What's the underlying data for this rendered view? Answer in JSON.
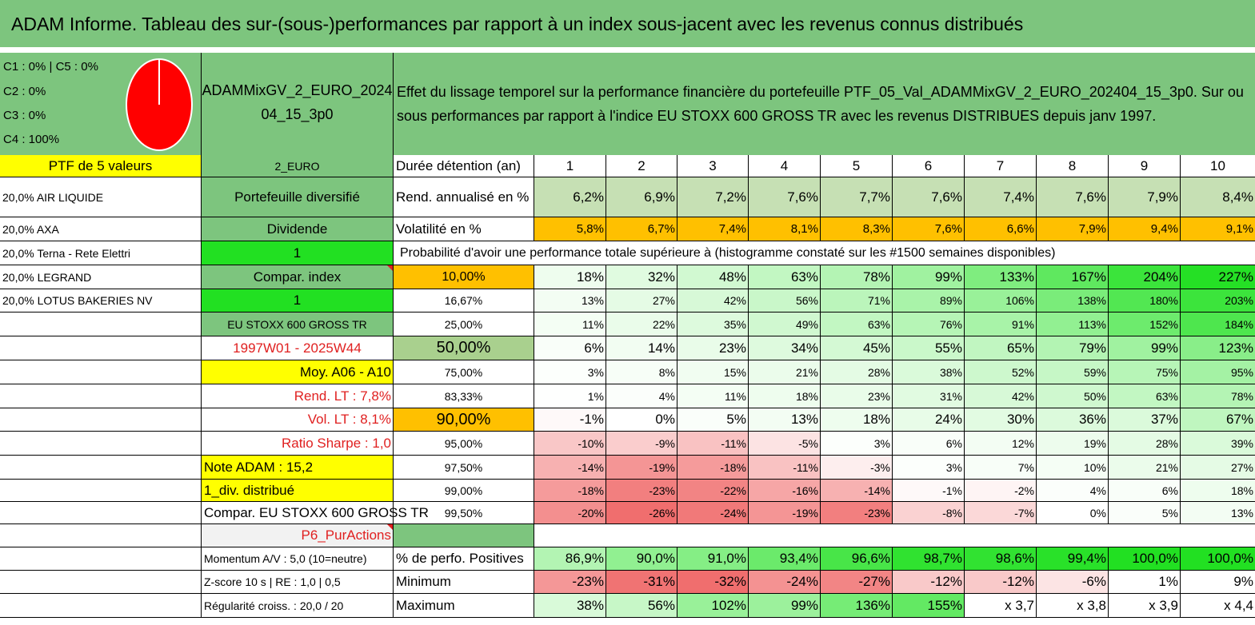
{
  "title": "ADAM Informe. Tableau des sur-(sous-)performances par rapport à un index sous-jacent avec les revenus connus distribués",
  "pie": {
    "lines": [
      "C1 : 0% | C5 : 0%",
      "C2 : 0%",
      "C3 : 0%",
      "C4 : 100%"
    ],
    "fill_color": "#ff0000",
    "stroke_color": "#ffffff"
  },
  "portfolio_name": "ADAMMixGV_2_EURO_202404_15_3p0",
  "effect_text": "Effet du lissage temporel sur la performance financière du portefeuille PTF_05_Val_ADAMMixGV_2_EURO_202404_15_3p0. Sur ou sous performances par rapport à l'indice EU STOXX 600 GROSS TR avec les revenus DISTRIBUES depuis janv 1997.",
  "colors": {
    "green": "#7dc57e",
    "yellow": "#ffff00",
    "bright_green": "#22e022",
    "orange": "#ffc000",
    "light_grey": "#f2f2f2",
    "red_text": "#e02020"
  },
  "col1": [
    "PTF de 5 valeurs",
    "20,0% AIR LIQUIDE",
    "20,0% AXA",
    "20,0% Terna - Rete Elettri",
    "20,0% LEGRAND",
    "20,0% LOTUS BAKERIES NV",
    "",
    "",
    "",
    "",
    "",
    "",
    "",
    "",
    "",
    "",
    "",
    ""
  ],
  "col2": [
    "2_EURO",
    "Portefeuille diversifié",
    "Dividende",
    "1",
    "Compar. index",
    "1",
    "EU STOXX 600 GROSS TR",
    "1997W01 - 2025W44",
    "Moy. A06 - A10",
    "Rend. LT : 7,8%",
    "Vol. LT : 8,1%",
    "Ratio Sharpe : 1,0",
    "Note ADAM : 15,2",
    "1_div. distribué",
    "Compar. EU STOXX 600 GROSS TR",
    "P6_PurActions",
    "Momentum A/V : 5,0 (10=neutre)",
    "Z-score 10 s | RE : 1,0 | 0,5",
    "Régularité croiss. : 20,0 / 20"
  ],
  "col3": [
    "Durée détention (an)",
    "Rend. annualisé en %",
    "Volatilité en %",
    "",
    "10,00%",
    "16,67%",
    "25,00%",
    "50,00%",
    "75,00%",
    "83,33%",
    "90,00%",
    "95,00%",
    "97,50%",
    "99,00%",
    "99,50%",
    "",
    "% de perfo. Positives",
    "Minimum",
    "Maximum"
  ],
  "proba_title": "Probabilité d'avoir une performance totale supérieure à (histogramme constaté sur les #1500 semaines disponibles)",
  "grid": [
    [
      "1",
      "2",
      "3",
      "4",
      "5",
      "6",
      "7",
      "8",
      "9",
      "10"
    ],
    [
      "6,2%",
      "6,9%",
      "7,2%",
      "7,6%",
      "7,7%",
      "7,6%",
      "7,4%",
      "7,6%",
      "7,9%",
      "8,4%"
    ],
    [
      "5,8%",
      "6,7%",
      "7,4%",
      "8,1%",
      "8,3%",
      "7,6%",
      "6,6%",
      "7,9%",
      "9,4%",
      "9,1%"
    ],
    [],
    [
      "18%",
      "32%",
      "48%",
      "63%",
      "78%",
      "99%",
      "133%",
      "167%",
      "204%",
      "227%"
    ],
    [
      "13%",
      "27%",
      "42%",
      "56%",
      "71%",
      "89%",
      "106%",
      "138%",
      "180%",
      "203%"
    ],
    [
      "11%",
      "22%",
      "35%",
      "49%",
      "63%",
      "76%",
      "91%",
      "113%",
      "152%",
      "184%"
    ],
    [
      "6%",
      "14%",
      "23%",
      "34%",
      "45%",
      "55%",
      "65%",
      "79%",
      "99%",
      "123%"
    ],
    [
      "3%",
      "8%",
      "15%",
      "21%",
      "28%",
      "38%",
      "52%",
      "59%",
      "75%",
      "95%"
    ],
    [
      "1%",
      "4%",
      "11%",
      "18%",
      "23%",
      "31%",
      "42%",
      "50%",
      "63%",
      "78%"
    ],
    [
      "-1%",
      "0%",
      "5%",
      "13%",
      "18%",
      "24%",
      "30%",
      "36%",
      "37%",
      "67%"
    ],
    [
      "-10%",
      "-9%",
      "-11%",
      "-5%",
      "3%",
      "6%",
      "12%",
      "19%",
      "28%",
      "39%"
    ],
    [
      "-14%",
      "-19%",
      "-18%",
      "-11%",
      "-3%",
      "3%",
      "7%",
      "10%",
      "21%",
      "27%"
    ],
    [
      "-18%",
      "-23%",
      "-22%",
      "-16%",
      "-14%",
      "-1%",
      "-2%",
      "4%",
      "6%",
      "18%"
    ],
    [
      "-20%",
      "-26%",
      "-24%",
      "-19%",
      "-23%",
      "-8%",
      "-7%",
      "0%",
      "5%",
      "13%"
    ],
    [],
    [
      "86,9%",
      "90,0%",
      "91,0%",
      "93,4%",
      "96,6%",
      "98,7%",
      "98,6%",
      "99,4%",
      "100,0%",
      "100,0%"
    ],
    [
      "-23%",
      "-31%",
      "-32%",
      "-24%",
      "-27%",
      "-12%",
      "-12%",
      "-6%",
      "1%",
      "9%"
    ],
    [
      "38%",
      "56%",
      "102%",
      "99%",
      "136%",
      "155%",
      "x 3,7",
      "x 3,8",
      "x 3,9",
      "x 4,4"
    ]
  ]
}
